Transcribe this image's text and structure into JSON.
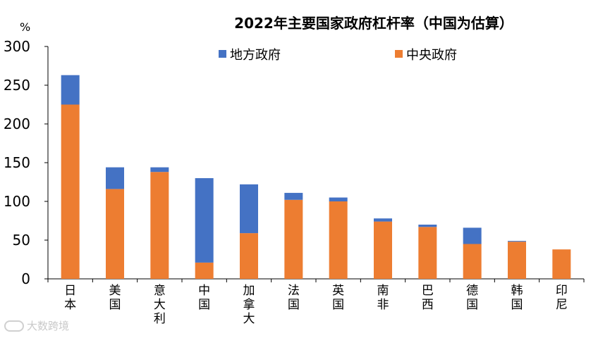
{
  "chart_data": {
    "type": "bar",
    "stacked": true,
    "title": "2022年主要国家政府杠杆率（中国为估算）",
    "ylabel": "%",
    "ylim": [
      0,
      300
    ],
    "yticks": [
      0,
      50,
      100,
      150,
      200,
      250,
      300
    ],
    "categories": [
      "日本",
      "美国",
      "意大利",
      "中国",
      "加拿大",
      "法国",
      "英国",
      "南非",
      "巴西",
      "德国",
      "韩国",
      "印尼"
    ],
    "series": [
      {
        "name": "中央政府",
        "color": "#ED7D31",
        "values": [
          225,
          116,
          138,
          21,
          59,
          102,
          100,
          74,
          67,
          45,
          48,
          38
        ]
      },
      {
        "name": "地方政府",
        "color": "#4472C4",
        "values": [
          38,
          28,
          6,
          109,
          63,
          9,
          5,
          4,
          3,
          21,
          1,
          0
        ]
      }
    ],
    "legend": [
      "地方政府",
      "中央政府"
    ],
    "legend_position": "top"
  },
  "watermark": "大数跨境"
}
